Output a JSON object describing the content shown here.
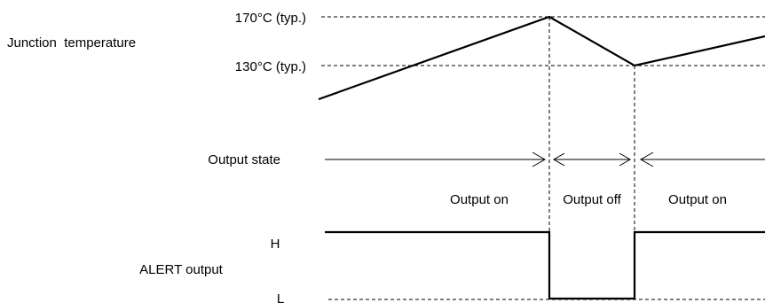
{
  "junction": {
    "label": "Junction  temperature",
    "high_threshold": "170°C (typ.)",
    "low_threshold": "130°C (typ.)"
  },
  "output_state": {
    "label": "Output state",
    "phase_on_1": "Output on",
    "phase_off": "Output off",
    "phase_on_2": "Output on"
  },
  "alert": {
    "label": "ALERT output",
    "high_level": "H",
    "low_level": "L"
  }
}
